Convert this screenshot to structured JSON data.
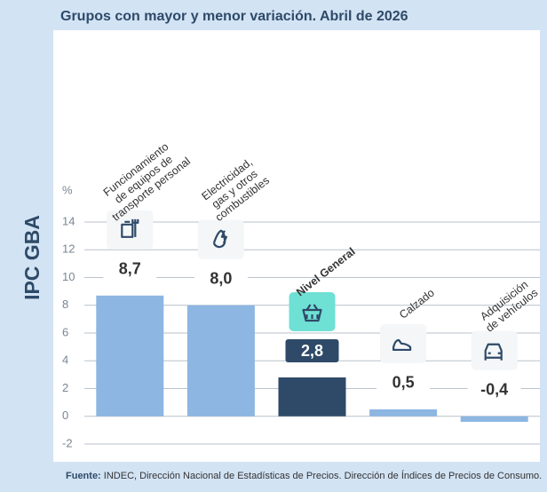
{
  "chart_data": {
    "type": "bar",
    "title": "Grupos con mayor y menor variación. Abril de 2026",
    "side_label": "IPC GBA",
    "y_unit": "%",
    "categories": [
      [
        "Funcionamiento",
        "de equipos de",
        "transporte personal"
      ],
      [
        "Electricidad,",
        "gas y otros",
        "combustibles"
      ],
      [
        "Nivel General"
      ],
      [
        "Calzado"
      ],
      [
        "Adquisición",
        "de vehículos"
      ]
    ],
    "values": [
      8.7,
      8.0,
      2.8,
      0.5,
      -0.4
    ],
    "value_labels": [
      "8,7",
      "8,0",
      "2,8",
      "0,5",
      "-0,4"
    ],
    "colors": [
      "#8db6e2",
      "#8db6e2",
      "#2e4a68",
      "#8db6e2",
      "#8db6e2"
    ],
    "ylim": [
      -2,
      14
    ],
    "yticks": [
      -2,
      0,
      2,
      4,
      6,
      8,
      10,
      12,
      14
    ],
    "grid": true,
    "source_label": "Fuente:",
    "source_text": "INDEC, Dirección Nacional de Estadísticas de Precios. Dirección de Índices de Precios de Consumo."
  }
}
